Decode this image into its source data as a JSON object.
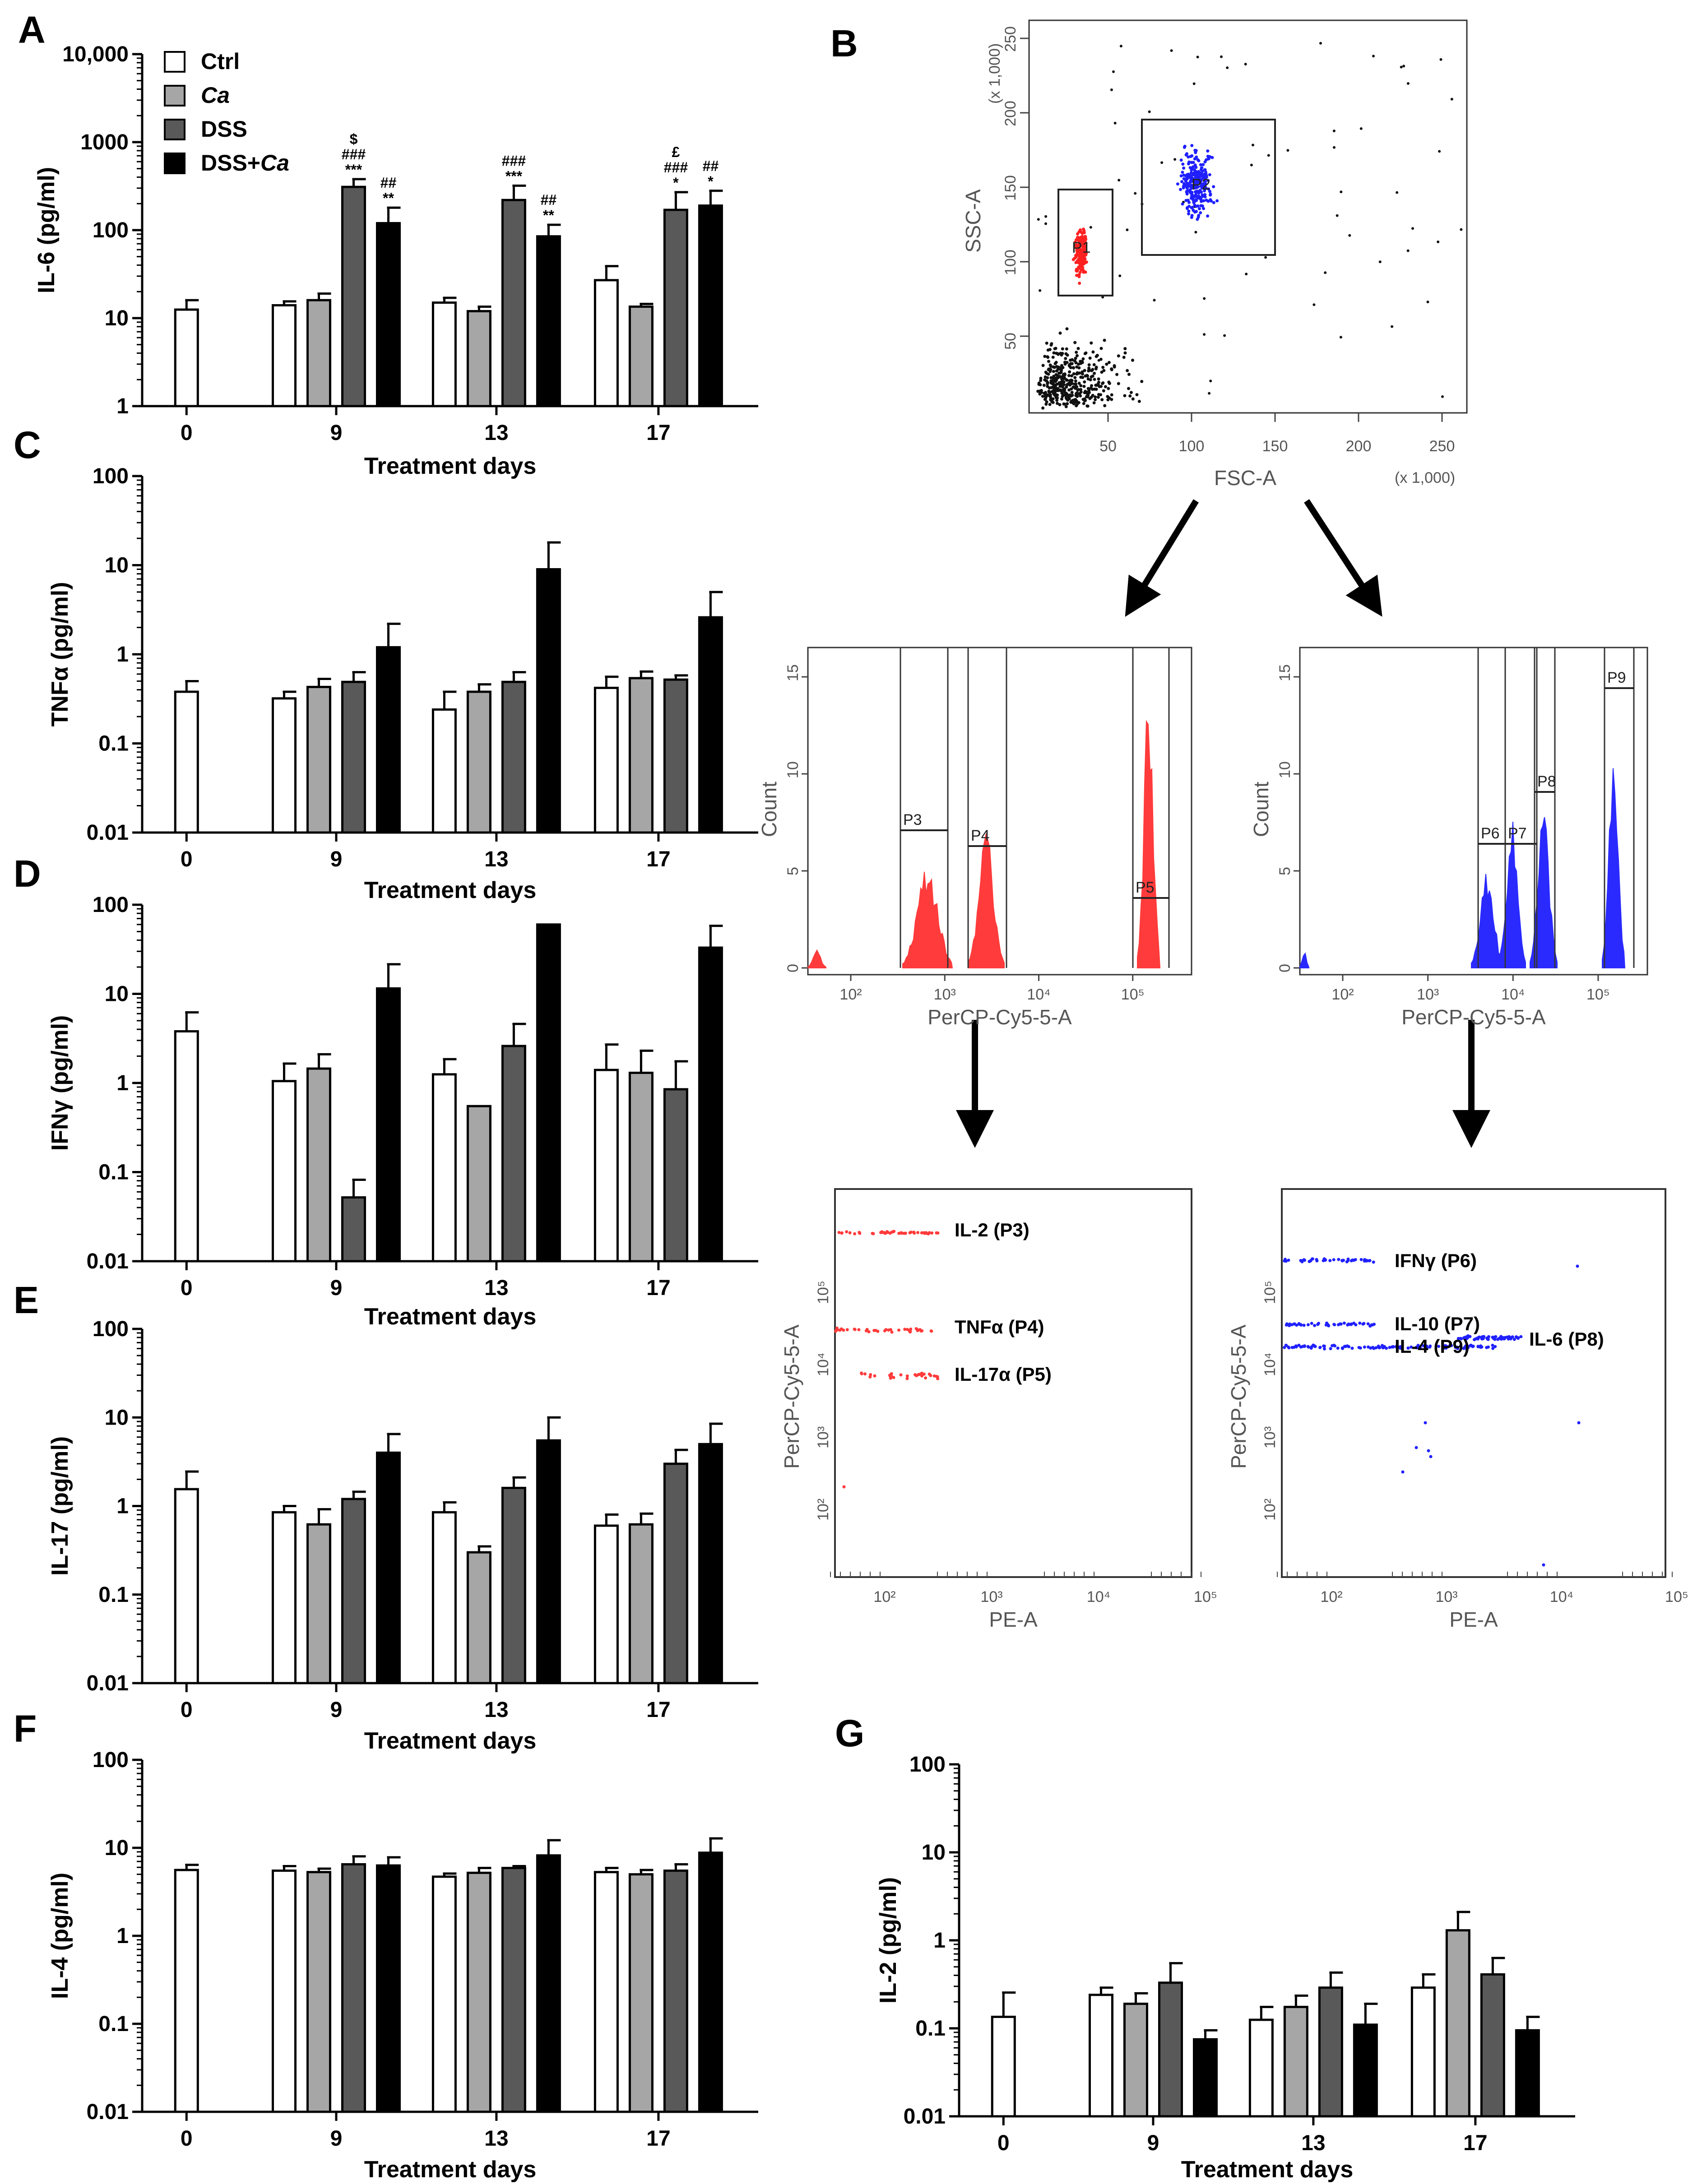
{
  "legend": {
    "items": [
      {
        "name": "Ctrl",
        "color": "#ffffff",
        "italic_suffix": ""
      },
      {
        "name": "",
        "italic_suffix": "Ca",
        "color": "#a6a6a6"
      },
      {
        "name": "DSS",
        "italic_suffix": "",
        "color": "#595959"
      },
      {
        "name": "DSS+",
        "italic_suffix": "Ca",
        "color": "#000000"
      }
    ]
  },
  "chart_data": [
    {
      "panel": "A",
      "type": "bar",
      "ylabel": "IL-6 (pg/ml)",
      "xlabel": "Treatment days",
      "yscale": "log",
      "ylim": [
        1,
        10000
      ],
      "ytick_labels": [
        "1",
        "10",
        "100",
        "1000",
        "10,000"
      ],
      "categories": [
        "0",
        "9",
        "13",
        "17"
      ],
      "series": [
        {
          "name": "Ctrl",
          "values": [
            12.5,
            14,
            15,
            27
          ],
          "errors": [
            3.5,
            1.5,
            2,
            12
          ]
        },
        {
          "name": "Ca",
          "values": [
            null,
            16,
            12,
            13.5
          ],
          "errors": [
            null,
            3,
            1.5,
            1
          ]
        },
        {
          "name": "DSS",
          "values": [
            null,
            310,
            220,
            170
          ],
          "errors": [
            null,
            70,
            100,
            100
          ]
        },
        {
          "name": "DSS+Ca",
          "values": [
            null,
            120,
            85,
            190
          ],
          "errors": [
            null,
            60,
            30,
            90
          ]
        }
      ],
      "annotations": [
        {
          "day": "9",
          "series": "DSS",
          "lines": [
            "$",
            "###",
            "***"
          ]
        },
        {
          "day": "9",
          "series": "DSS+Ca",
          "lines": [
            "##",
            "**"
          ]
        },
        {
          "day": "13",
          "series": "DSS",
          "lines": [
            "###",
            "***"
          ]
        },
        {
          "day": "13",
          "series": "DSS+Ca",
          "lines": [
            "##",
            "**"
          ]
        },
        {
          "day": "17",
          "series": "DSS",
          "lines": [
            "£",
            "###",
            "*"
          ]
        },
        {
          "day": "17",
          "series": "DSS+Ca",
          "lines": [
            "##",
            "*"
          ]
        }
      ]
    },
    {
      "panel": "C",
      "type": "bar",
      "ylabel": "TNFα (pg/ml)",
      "xlabel": "Treatment days",
      "yscale": "log",
      "ylim": [
        0.01,
        100
      ],
      "ytick_labels": [
        "0.01",
        "0.1",
        "1",
        "10",
        "100"
      ],
      "categories": [
        "0",
        "9",
        "13",
        "17"
      ],
      "series": [
        {
          "name": "Ctrl",
          "values": [
            0.38,
            0.32,
            0.24,
            0.42
          ],
          "errors": [
            0.12,
            0.06,
            0.14,
            0.14
          ]
        },
        {
          "name": "Ca",
          "values": [
            null,
            0.43,
            0.38,
            0.54
          ],
          "errors": [
            null,
            0.1,
            0.08,
            0.1
          ]
        },
        {
          "name": "DSS",
          "values": [
            null,
            0.49,
            0.49,
            0.52
          ],
          "errors": [
            null,
            0.14,
            0.14,
            0.06
          ]
        },
        {
          "name": "DSS+Ca",
          "values": [
            null,
            1.2,
            9,
            2.6
          ],
          "errors": [
            null,
            1,
            9,
            2.4
          ]
        }
      ]
    },
    {
      "panel": "D",
      "type": "bar",
      "ylabel": "IFNγ (pg/ml)",
      "xlabel": "Treatment days",
      "yscale": "log",
      "ylim": [
        0.01,
        100
      ],
      "ytick_labels": [
        "0.01",
        "0.1",
        "1",
        "10",
        "100"
      ],
      "categories": [
        "0",
        "9",
        "13",
        "17"
      ],
      "series": [
        {
          "name": "Ctrl",
          "values": [
            3.8,
            1.05,
            1.25,
            1.4
          ],
          "errors": [
            2.4,
            0.6,
            0.6,
            1.3
          ]
        },
        {
          "name": "Ca",
          "values": [
            null,
            1.45,
            0.55,
            1.3
          ],
          "errors": [
            null,
            0.65,
            null,
            1
          ]
        },
        {
          "name": "DSS",
          "values": [
            null,
            0.052,
            2.6,
            0.85
          ],
          "errors": [
            null,
            0.03,
            2,
            0.9
          ]
        },
        {
          "name": "DSS+Ca",
          "values": [
            null,
            11.5,
            60,
            33
          ],
          "errors": [
            null,
            10,
            null,
            25
          ]
        }
      ]
    },
    {
      "panel": "E",
      "type": "bar",
      "ylabel": "IL-17 (pg/ml)",
      "xlabel": "Treatment days",
      "yscale": "log",
      "ylim": [
        0.01,
        100
      ],
      "ytick_labels": [
        "0.01",
        "0.1",
        "1",
        "10",
        "100"
      ],
      "categories": [
        "0",
        "9",
        "13",
        "17"
      ],
      "series": [
        {
          "name": "Ctrl",
          "values": [
            1.55,
            0.85,
            0.85,
            0.6
          ],
          "errors": [
            0.9,
            0.15,
            0.25,
            0.2
          ]
        },
        {
          "name": "Ca",
          "values": [
            null,
            0.62,
            0.3,
            0.62
          ],
          "errors": [
            null,
            0.3,
            0.05,
            0.2
          ]
        },
        {
          "name": "DSS",
          "values": [
            null,
            1.2,
            1.6,
            3
          ],
          "errors": [
            null,
            0.25,
            0.5,
            1.3
          ]
        },
        {
          "name": "DSS+Ca",
          "values": [
            null,
            4,
            5.5,
            5
          ],
          "errors": [
            null,
            2.5,
            4.5,
            3.5
          ]
        }
      ]
    },
    {
      "panel": "F",
      "type": "bar",
      "ylabel": "IL-4 (pg/ml)",
      "xlabel": "Treatment days",
      "yscale": "log",
      "ylim": [
        0.01,
        100
      ],
      "ytick_labels": [
        "0.01",
        "0.1",
        "1",
        "10",
        "100"
      ],
      "categories": [
        "0",
        "9",
        "13",
        "17"
      ],
      "series": [
        {
          "name": "Ctrl",
          "values": [
            5.6,
            5.5,
            4.7,
            5.3
          ],
          "errors": [
            0.8,
            0.7,
            0.4,
            0.6
          ]
        },
        {
          "name": "Ca",
          "values": [
            null,
            5.3,
            5.2,
            5
          ],
          "errors": [
            null,
            0.5,
            0.7,
            0.6
          ]
        },
        {
          "name": "DSS",
          "values": [
            null,
            6.5,
            5.9,
            5.5
          ],
          "errors": [
            null,
            1.5,
            0.3,
            1
          ]
        },
        {
          "name": "DSS+Ca",
          "values": [
            null,
            6.3,
            8.2,
            8.8
          ],
          "errors": [
            null,
            1.5,
            4,
            4
          ]
        }
      ]
    },
    {
      "panel": "G",
      "type": "bar",
      "ylabel": "IL-2 (pg/ml)",
      "xlabel": "Treatment days",
      "yscale": "log",
      "ylim": [
        0.01,
        100
      ],
      "ytick_labels": [
        "0.01",
        "0.1",
        "1",
        "10",
        "100"
      ],
      "categories": [
        "0",
        "9",
        "13",
        "17"
      ],
      "series": [
        {
          "name": "Ctrl",
          "values": [
            0.135,
            0.24,
            0.125,
            0.29
          ],
          "errors": [
            0.12,
            0.05,
            0.05,
            0.12
          ]
        },
        {
          "name": "Ca",
          "values": [
            null,
            0.19,
            0.175,
            1.3
          ],
          "errors": [
            null,
            0.06,
            0.06,
            0.8
          ]
        },
        {
          "name": "DSS",
          "values": [
            null,
            0.33,
            0.29,
            0.41
          ],
          "errors": [
            null,
            0.22,
            0.14,
            0.22
          ]
        },
        {
          "name": "DSS+Ca",
          "values": [
            null,
            0.075,
            0.11,
            0.095
          ],
          "errors": [
            null,
            0.02,
            0.08,
            0.04
          ]
        }
      ]
    }
  ],
  "flow": {
    "panel_label": "B",
    "scatter": {
      "yaxis_label": "SSC-A",
      "xaxis_label": "FSC-A",
      "unit_label": "(x 1,000)",
      "xticks": [
        "50",
        "100",
        "150",
        "200",
        "250"
      ],
      "yticks": [
        "50",
        "100",
        "150",
        "200",
        "250"
      ],
      "gates": [
        "P1",
        "P2"
      ],
      "gate_colors": [
        "#ff2020",
        "#1f1fff"
      ]
    },
    "histograms": {
      "yaxis_label": "Count",
      "xaxis_label": "PerCP-Cy5-5-A",
      "yticks": [
        "0",
        "5",
        "10",
        "15"
      ],
      "xticks": [
        "10²",
        "10³",
        "10⁴",
        "10⁵"
      ],
      "left_gates": [
        "P3",
        "P4",
        "P5"
      ],
      "right_gates": [
        "P6",
        "P7",
        "P8",
        "P9"
      ]
    },
    "dotplots": {
      "yaxis_label": "PerCP-Cy5-5-A",
      "xaxis_label": "PE-A",
      "ticks": [
        "10²",
        "10³",
        "10⁴",
        "10⁵"
      ],
      "left_labels": [
        "IL-2 (P3)",
        "TNFα (P4)",
        "IL-17α (P5)"
      ],
      "right_labels": [
        "IFNγ (P6)",
        "IL-10 (P7)",
        "IL-6 (P8)",
        "IL-4 (P9)"
      ]
    }
  }
}
